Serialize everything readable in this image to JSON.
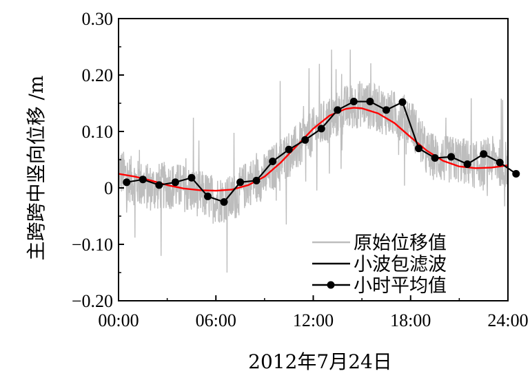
{
  "chart_data": {
    "type": "line",
    "xlabel": "2012年7月24日",
    "ylabel": "主跨跨中竖向位移 /m",
    "xlim": [
      0,
      24
    ],
    "ylim": [
      -0.2,
      0.3
    ],
    "x_ticks": [
      0,
      6,
      12,
      18,
      24
    ],
    "x_tick_labels": [
      "00:00",
      "06:00",
      "12:00",
      "18:00",
      "24:00"
    ],
    "y_ticks": [
      -0.2,
      -0.1,
      0,
      0.1,
      0.2,
      0.3
    ],
    "y_tick_labels": [
      "−0.20",
      "−0.10",
      "0",
      "0.10",
      "0.20",
      "0.30"
    ],
    "grid": false,
    "legend_position": "bottom-right",
    "series": [
      {
        "name": "原始位移值",
        "color": "#bdbdbd",
        "style": "noisy-line",
        "x": [
          0,
          1,
          2,
          3,
          4,
          5,
          6,
          7,
          8,
          9,
          10,
          11,
          12,
          13,
          14,
          15,
          16,
          17,
          18,
          19,
          20,
          21,
          22,
          23,
          24
        ],
        "y": [
          0.03,
          0.01,
          0.0,
          0.005,
          0.0,
          -0.01,
          -0.02,
          -0.02,
          0.01,
          0.02,
          0.05,
          0.07,
          0.1,
          0.12,
          0.14,
          0.15,
          0.14,
          0.13,
          0.12,
          0.06,
          0.05,
          0.05,
          0.04,
          0.05,
          0.04
        ],
        "y_min_observed": -0.15,
        "y_max_observed": 0.245
      },
      {
        "name": "小波包滤波",
        "color": "#ff0000",
        "x": [
          0,
          1,
          2,
          3,
          4,
          5,
          6,
          7,
          8,
          9,
          10,
          11,
          12,
          13,
          14,
          14.5,
          15,
          16,
          17,
          18,
          19,
          20,
          21,
          22,
          23,
          24
        ],
        "y": [
          0.025,
          0.02,
          0.013,
          0.005,
          -0.001,
          -0.004,
          -0.005,
          -0.003,
          0.005,
          0.02,
          0.045,
          0.075,
          0.105,
          0.128,
          0.14,
          0.142,
          0.141,
          0.132,
          0.115,
          0.09,
          0.066,
          0.048,
          0.038,
          0.035,
          0.036,
          0.04
        ]
      },
      {
        "name": "小时平均值",
        "color": "#000000",
        "marker": "circle",
        "x": [
          0.5,
          1.5,
          2.5,
          3.5,
          4.5,
          5.5,
          6.5,
          7.5,
          8.5,
          9.5,
          10.5,
          11.5,
          12.5,
          13.5,
          14.5,
          15.5,
          16.5,
          17.5,
          18.5,
          19.5,
          20.5,
          21.5,
          22.5,
          23.5,
          24.5
        ],
        "y": [
          0.01,
          0.015,
          0.005,
          0.01,
          0.018,
          -0.015,
          -0.025,
          0.01,
          0.013,
          0.047,
          0.068,
          0.085,
          0.105,
          0.138,
          0.153,
          0.153,
          0.138,
          0.152,
          0.07,
          0.053,
          0.055,
          0.042,
          0.06,
          0.045,
          0.025
        ]
      }
    ]
  }
}
